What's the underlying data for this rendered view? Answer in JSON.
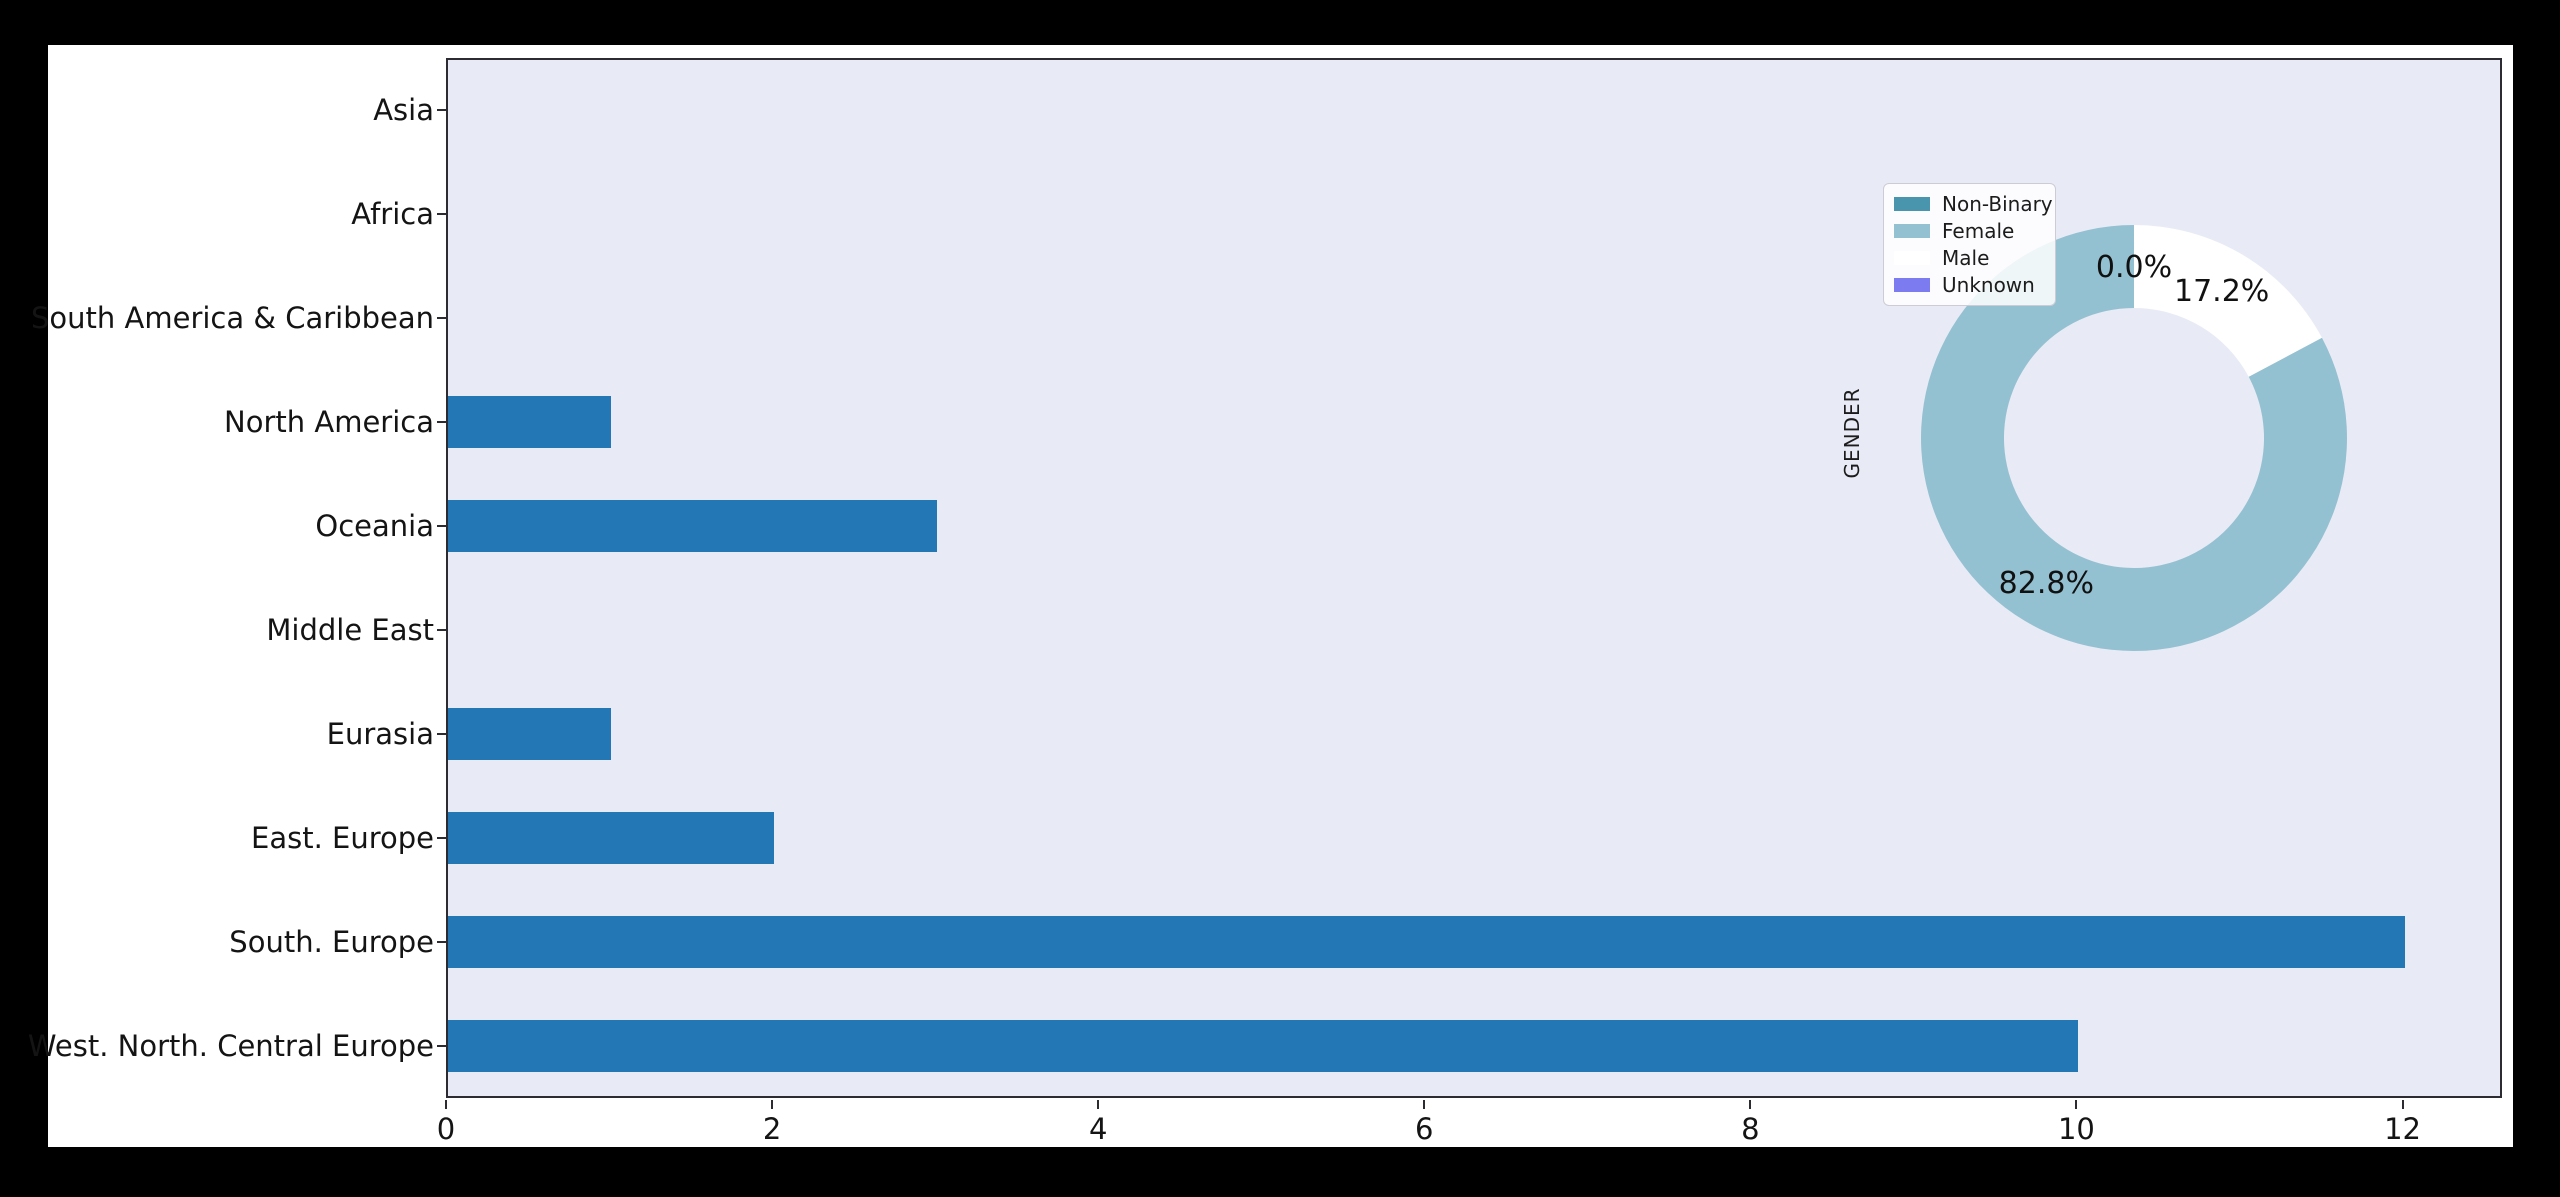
{
  "window": {
    "background": "#000000"
  },
  "figure": {
    "background": "#ffffff"
  },
  "plot": {
    "background": "#e8ebf5",
    "spine_color": "#2b2b31"
  },
  "chart_data": [
    {
      "type": "bar",
      "orientation": "horizontal",
      "title": "",
      "xlabel": "",
      "ylabel": "",
      "categories": [
        "Asia",
        "Africa",
        "South America & Caribbean",
        "North America",
        "Oceania",
        "Middle East",
        "Eurasia",
        "East. Europe",
        "South. Europe",
        "West. North. Central Europe"
      ],
      "values": [
        0,
        0,
        0,
        1,
        3,
        0,
        1,
        2,
        12,
        10
      ],
      "bar_color": "#2277b4",
      "xlim": [
        0,
        12.61
      ],
      "xticks": [
        "0",
        "2",
        "4",
        "6",
        "8",
        "10",
        "12"
      ],
      "xtick_values": [
        0,
        2,
        4,
        6,
        8,
        10,
        12
      ],
      "grid": false,
      "legend_position": "none"
    },
    {
      "type": "pie",
      "donut": true,
      "title": "GENDER",
      "labels": [
        "Non-Binary",
        "Female",
        "Male",
        "Unknown"
      ],
      "values_pct": [
        0.0,
        82.8,
        17.2,
        0.0
      ],
      "pct_labels": [
        "0.0%",
        "82.8%",
        "17.2%",
        "0.0%"
      ],
      "colors": [
        "#4a95ae",
        "#94c1d1",
        "#ffffff",
        "#7d7bf0"
      ],
      "start_angle": 90,
      "counterclock": true,
      "legend_position": "upper left"
    }
  ]
}
